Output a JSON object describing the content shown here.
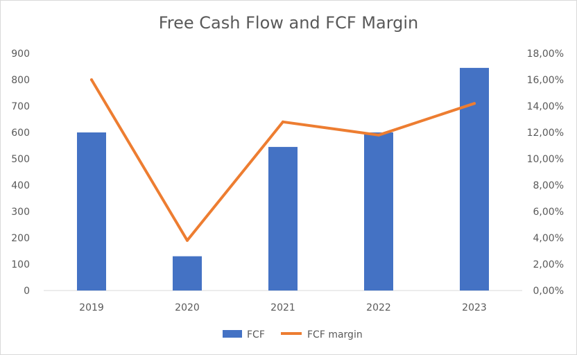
{
  "chart_data": {
    "type": "bar",
    "title": "Free Cash Flow and FCF Margin",
    "categories": [
      "2019",
      "2020",
      "2021",
      "2022",
      "2023"
    ],
    "series": [
      {
        "name": "FCF",
        "type": "bar",
        "axis": "left",
        "color": "#4472C4",
        "values": [
          600,
          130,
          545,
          600,
          845
        ]
      },
      {
        "name": "FCF margin",
        "type": "line",
        "axis": "right",
        "color": "#ED7D31",
        "values": [
          0.16,
          0.038,
          0.128,
          0.118,
          0.142
        ]
      }
    ],
    "ylim": [
      0,
      900
    ],
    "y_ticks": [
      "0",
      "100",
      "200",
      "300",
      "400",
      "500",
      "600",
      "700",
      "800",
      "900"
    ],
    "y2lim": [
      0,
      0.18
    ],
    "y2_ticks": [
      "0,00%",
      "2,00%",
      "4,00%",
      "6,00%",
      "8,00%",
      "10,00%",
      "12,00%",
      "14,00%",
      "16,00%",
      "18,00%"
    ],
    "grid": false,
    "legend": "bottom"
  }
}
